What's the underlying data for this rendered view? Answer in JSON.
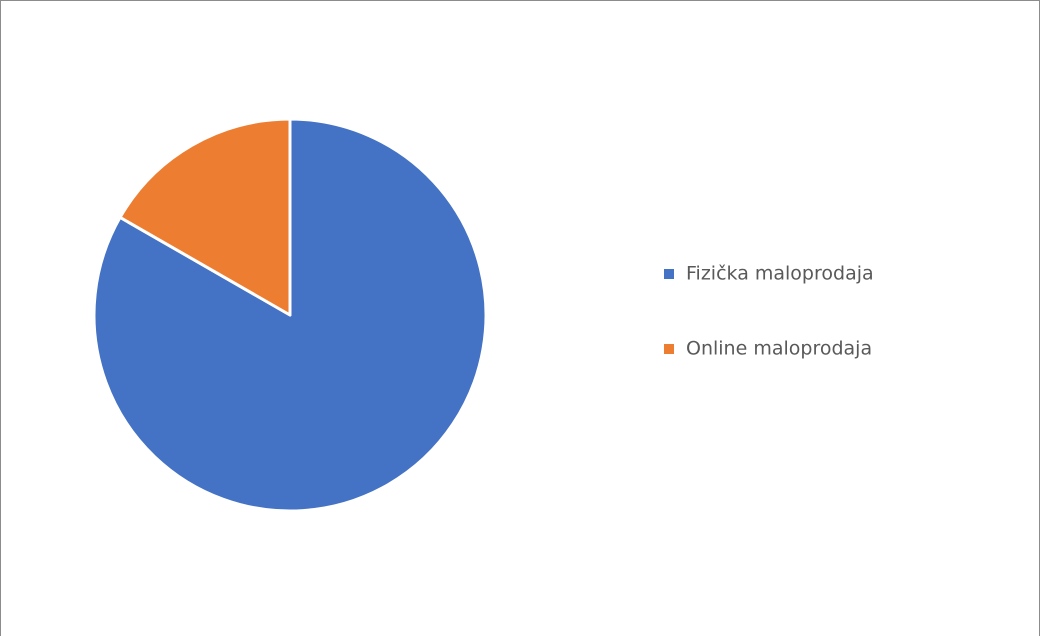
{
  "chart_data": {
    "type": "pie",
    "categories": [
      "Fizička maloprodaja",
      "Online maloprodaja"
    ],
    "values": [
      83.3,
      16.7
    ],
    "colors": [
      "#4472c4",
      "#ed7d31"
    ],
    "legend": "right"
  }
}
